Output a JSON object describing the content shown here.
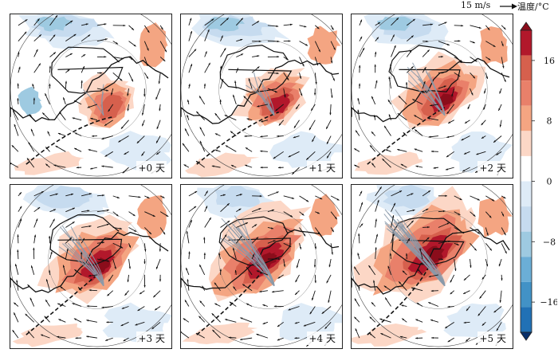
{
  "reference_vector": {
    "label": "15 m/s"
  },
  "colorbar": {
    "title": "温度/°C",
    "ticks": [
      {
        "value": 16,
        "label": "16"
      },
      {
        "value": 8,
        "label": "8"
      },
      {
        "value": 0,
        "label": "0"
      },
      {
        "value": -8,
        "label": "−8"
      },
      {
        "value": -16,
        "label": "−16"
      }
    ],
    "range": [
      -20,
      20
    ],
    "colors": [
      "#08306b",
      "#2171b5",
      "#4292c6",
      "#6baed6",
      "#9ecae1",
      "#c6dbef",
      "#deebf7",
      "#ffffff",
      "#fcd7c6",
      "#f4a582",
      "#e9806a",
      "#d6604d",
      "#b2182b",
      "#8b0d1b"
    ]
  },
  "panels": [
    {
      "label": "+0 天",
      "day": 0
    },
    {
      "label": "+1 天",
      "day": 1
    },
    {
      "label": "+2 天",
      "day": 2
    },
    {
      "label": "+3 天",
      "day": 3
    },
    {
      "label": "+4 天",
      "day": 4
    },
    {
      "label": "+5 天",
      "day": 5
    }
  ]
}
